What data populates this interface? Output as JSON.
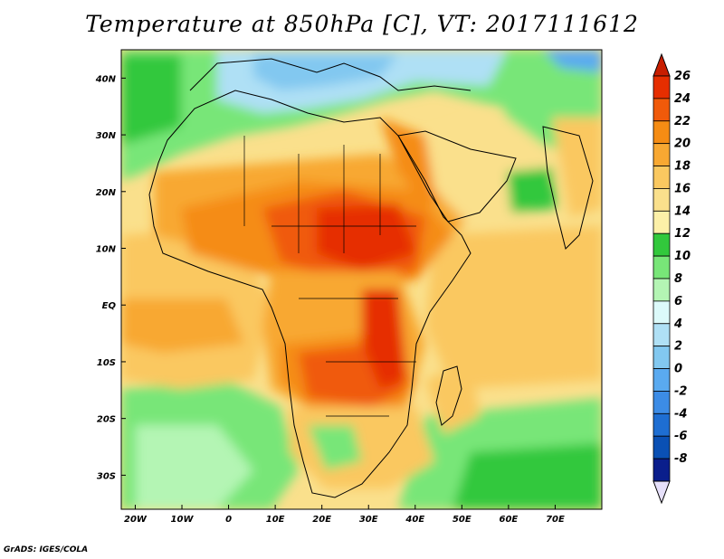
{
  "title": "Temperature at 850hPa [C], VT: 2017111612",
  "credit": "GrADS: IGES/COLA",
  "map": {
    "lon_range": [
      -23,
      80
    ],
    "lat_range": [
      -36,
      45
    ],
    "lon_ticks": [
      {
        "lon": -20,
        "label": "20W"
      },
      {
        "lon": -10,
        "label": "10W"
      },
      {
        "lon": 0,
        "label": "0"
      },
      {
        "lon": 10,
        "label": "10E"
      },
      {
        "lon": 20,
        "label": "20E"
      },
      {
        "lon": 30,
        "label": "30E"
      },
      {
        "lon": 40,
        "label": "40E"
      },
      {
        "lon": 50,
        "label": "50E"
      },
      {
        "lon": 60,
        "label": "60E"
      },
      {
        "lon": 70,
        "label": "70E"
      }
    ],
    "lat_ticks": [
      {
        "lat": 40,
        "label": "40N"
      },
      {
        "lat": 30,
        "label": "30N"
      },
      {
        "lat": 20,
        "label": "20N"
      },
      {
        "lat": 10,
        "label": "10N"
      },
      {
        "lat": 0,
        "label": "EQ"
      },
      {
        "lat": -10,
        "label": "10S"
      },
      {
        "lat": -20,
        "label": "20S"
      },
      {
        "lat": -30,
        "label": "30S"
      }
    ]
  },
  "colorbar": {
    "labels": [
      "26",
      "24",
      "22",
      "20",
      "18",
      "16",
      "14",
      "12",
      "10",
      "8",
      "6",
      "4",
      "2",
      "0",
      "-2",
      "-4",
      "-6",
      "-8"
    ],
    "colors": [
      "#e62e00",
      "#f05a0a",
      "#f58c14",
      "#f8a832",
      "#fac860",
      "#fae08c",
      "#fcf0a8",
      "#32c83c",
      "#78e678",
      "#b4f5b4",
      "#dcfafa",
      "#afe0f5",
      "#82c8f0",
      "#5aaaf0",
      "#3c8ce6",
      "#1e6ed2",
      "#0a50b4",
      "#0a1e8c"
    ],
    "top_arrow_color": "#c81e00",
    "bottom_arrow_color": "#e6e0fa"
  }
}
